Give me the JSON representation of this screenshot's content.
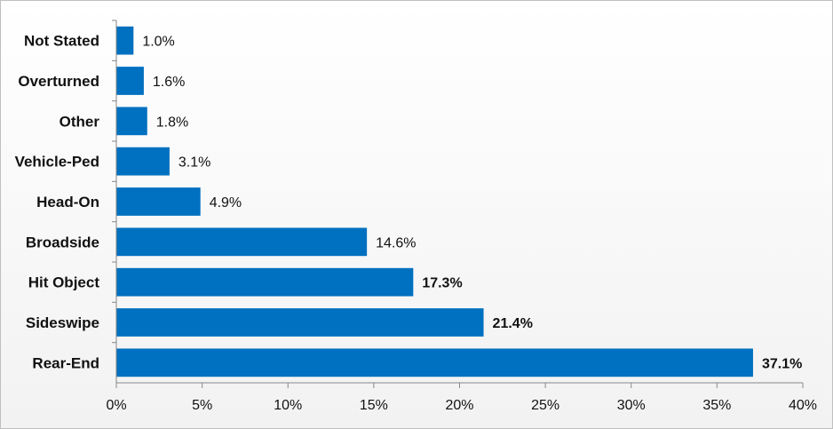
{
  "chart_data": {
    "type": "bar",
    "orientation": "horizontal",
    "title": "",
    "xlabel": "",
    "ylabel": "",
    "xlim": [
      0,
      40
    ],
    "grid": false,
    "legend": "none",
    "bar_color": "#0070C0",
    "categories": [
      "Not Stated",
      "Overturned",
      "Other",
      "Vehicle-Ped",
      "Head-On",
      "Broadside",
      "Hit Object",
      "Sideswipe",
      "Rear-End"
    ],
    "values": [
      1.0,
      1.6,
      1.8,
      3.1,
      4.9,
      14.6,
      17.3,
      21.4,
      37.1
    ],
    "value_labels": [
      "1.0%",
      "1.6%",
      "1.8%",
      "3.1%",
      "4.9%",
      "14.6%",
      "17.3%",
      "21.4%",
      "37.1%"
    ],
    "bold_value_labels": [
      false,
      false,
      false,
      false,
      false,
      false,
      true,
      true,
      true
    ],
    "x_ticks": [
      0,
      5,
      10,
      15,
      20,
      25,
      30,
      35,
      40
    ],
    "x_tick_labels": [
      "0%",
      "5%",
      "10%",
      "15%",
      "20%",
      "25%",
      "30%",
      "35%",
      "40%"
    ]
  }
}
